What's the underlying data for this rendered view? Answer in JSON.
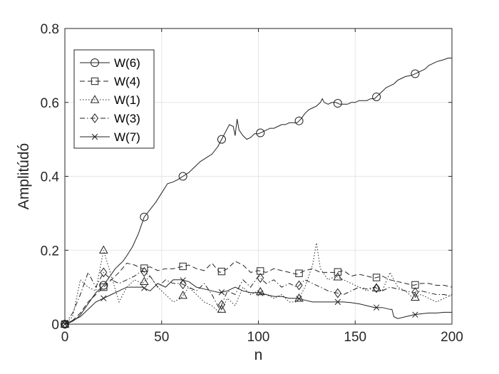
{
  "chart_data": {
    "type": "line",
    "xlabel": "n",
    "ylabel": "Amplitúdó",
    "xlim": [
      0,
      200
    ],
    "ylim": [
      0,
      0.8
    ],
    "xticks": [
      "0",
      "50",
      "100",
      "150",
      "200"
    ],
    "yticks": [
      "0",
      "0.2",
      "0.4",
      "0.6",
      "0.8"
    ],
    "grid": true,
    "legend_position": "top-left",
    "series": [
      {
        "name": "W(6)",
        "marker": "circle",
        "dash": "solid",
        "x": [
          0,
          2,
          4,
          6,
          8,
          10,
          12,
          14,
          16,
          18,
          20,
          22,
          24,
          26,
          28,
          30,
          32,
          35,
          38,
          41,
          44,
          47,
          50,
          53,
          56,
          58,
          61,
          64,
          67,
          70,
          73,
          76,
          79,
          81,
          83,
          85,
          87,
          88,
          89,
          90,
          92,
          94,
          96,
          98,
          100,
          102,
          104,
          106,
          108,
          110,
          112,
          114,
          116,
          118,
          120,
          122,
          124,
          126,
          128,
          130,
          132,
          133,
          134,
          136,
          138,
          140,
          142,
          144,
          146,
          148,
          150,
          152,
          154,
          156,
          158,
          160,
          162,
          164,
          166,
          168,
          170,
          172,
          174,
          176,
          178,
          180,
          182,
          184,
          186,
          188,
          190,
          192,
          194,
          196,
          198,
          200
        ],
        "y": [
          0,
          0.003,
          0.008,
          0.015,
          0.025,
          0.04,
          0.055,
          0.07,
          0.085,
          0.095,
          0.105,
          0.12,
          0.135,
          0.15,
          0.16,
          0.17,
          0.185,
          0.21,
          0.245,
          0.29,
          0.31,
          0.33,
          0.355,
          0.38,
          0.385,
          0.39,
          0.4,
          0.41,
          0.425,
          0.44,
          0.45,
          0.46,
          0.48,
          0.5,
          0.52,
          0.54,
          0.535,
          0.51,
          0.555,
          0.525,
          0.51,
          0.5,
          0.505,
          0.515,
          0.515,
          0.52,
          0.525,
          0.53,
          0.53,
          0.535,
          0.54,
          0.54,
          0.545,
          0.545,
          0.545,
          0.555,
          0.57,
          0.58,
          0.585,
          0.59,
          0.6,
          0.61,
          0.6,
          0.595,
          0.6,
          0.6,
          0.595,
          0.595,
          0.595,
          0.6,
          0.6,
          0.605,
          0.605,
          0.605,
          0.61,
          0.61,
          0.62,
          0.63,
          0.64,
          0.645,
          0.65,
          0.66,
          0.665,
          0.67,
          0.672,
          0.675,
          0.68,
          0.685,
          0.69,
          0.7,
          0.705,
          0.71,
          0.713,
          0.716,
          0.72,
          0.72
        ],
        "markers_at": [
          0,
          20,
          41,
          61,
          81,
          101,
          121,
          141,
          161,
          181
        ]
      },
      {
        "name": "W(4)",
        "marker": "square",
        "dash": "dashed",
        "x": [
          0,
          4,
          8,
          12,
          16,
          20,
          24,
          28,
          32,
          36,
          40,
          44,
          48,
          52,
          56,
          60,
          64,
          68,
          72,
          76,
          80,
          84,
          88,
          92,
          96,
          100,
          104,
          108,
          112,
          116,
          120,
          124,
          128,
          132,
          136,
          140,
          144,
          148,
          152,
          156,
          160,
          164,
          168,
          172,
          176,
          180,
          184,
          188,
          192,
          196,
          200
        ],
        "y": [
          0,
          0.01,
          0.03,
          0.06,
          0.08,
          0.1,
          0.12,
          0.14,
          0.165,
          0.16,
          0.15,
          0.155,
          0.145,
          0.15,
          0.15,
          0.155,
          0.16,
          0.15,
          0.145,
          0.165,
          0.14,
          0.15,
          0.17,
          0.16,
          0.14,
          0.145,
          0.14,
          0.15,
          0.145,
          0.14,
          0.135,
          0.145,
          0.15,
          0.14,
          0.14,
          0.14,
          0.145,
          0.13,
          0.135,
          0.13,
          0.125,
          0.13,
          0.12,
          0.115,
          0.11,
          0.105,
          0.11,
          0.11,
          0.105,
          0.105,
          0.1
        ],
        "markers_at": [
          0,
          20,
          41,
          61,
          81,
          101,
          121,
          141,
          161,
          181
        ]
      },
      {
        "name": "W(1)",
        "marker": "triangle",
        "dash": "dotted",
        "x": [
          0,
          4,
          8,
          12,
          16,
          20,
          24,
          28,
          32,
          36,
          40,
          44,
          48,
          52,
          56,
          60,
          64,
          68,
          72,
          76,
          80,
          84,
          88,
          92,
          96,
          100,
          104,
          108,
          112,
          116,
          120,
          124,
          128,
          130,
          132,
          136,
          140,
          144,
          148,
          152,
          156,
          160,
          164,
          168,
          172,
          176,
          180,
          184,
          188,
          192,
          196,
          200
        ],
        "y": [
          0,
          0.02,
          0.12,
          0.1,
          0.09,
          0.2,
          0.13,
          0.06,
          0.1,
          0.12,
          0.11,
          0.13,
          0.1,
          0.08,
          0.06,
          0.07,
          0.1,
          0.08,
          0.06,
          0.05,
          0.03,
          0.07,
          0.05,
          0.1,
          0.08,
          0.09,
          0.08,
          0.07,
          0.08,
          0.06,
          0.06,
          0.1,
          0.16,
          0.22,
          0.15,
          0.12,
          0.13,
          0.12,
          0.11,
          0.1,
          0.09,
          0.1,
          0.09,
          0.14,
          0.1,
          0.09,
          0.07,
          0.08,
          0.07,
          0.06,
          0.07,
          0.08
        ],
        "markers_at": [
          0,
          20,
          41,
          61,
          81,
          101,
          121,
          141,
          161,
          181
        ]
      },
      {
        "name": "W(3)",
        "marker": "diamond",
        "dash": "dashdot",
        "x": [
          0,
          4,
          8,
          12,
          16,
          20,
          24,
          28,
          32,
          36,
          40,
          44,
          48,
          52,
          56,
          60,
          64,
          68,
          72,
          76,
          80,
          84,
          88,
          92,
          96,
          100,
          104,
          108,
          112,
          116,
          120,
          124,
          128,
          132,
          136,
          140,
          144,
          148,
          152,
          156,
          160,
          164,
          168,
          172,
          176,
          180,
          184,
          188,
          192,
          196,
          200
        ],
        "y": [
          0,
          0.03,
          0.08,
          0.14,
          0.1,
          0.14,
          0.12,
          0.11,
          0.12,
          0.13,
          0.145,
          0.13,
          0.1,
          0.12,
          0.11,
          0.11,
          0.1,
          0.09,
          0.11,
          0.08,
          0.04,
          0.09,
          0.08,
          0.12,
          0.1,
          0.13,
          0.11,
          0.12,
          0.1,
          0.11,
          0.1,
          0.12,
          0.11,
          0.1,
          0.09,
          0.085,
          0.08,
          0.09,
          0.1,
          0.095,
          0.1,
          0.09,
          0.1,
          0.095,
          0.09,
          0.085,
          0.09,
          0.085,
          0.08,
          0.08,
          0.075
        ],
        "markers_at": [
          0,
          20,
          41,
          61,
          81,
          101,
          121,
          141,
          161,
          181
        ]
      },
      {
        "name": "W(7)",
        "marker": "x",
        "dash": "solid",
        "x": [
          0,
          4,
          8,
          12,
          16,
          20,
          24,
          28,
          32,
          36,
          40,
          44,
          48,
          52,
          56,
          60,
          64,
          68,
          72,
          76,
          80,
          84,
          88,
          92,
          96,
          100,
          104,
          108,
          112,
          116,
          120,
          124,
          128,
          132,
          136,
          140,
          144,
          148,
          152,
          156,
          160,
          164,
          168,
          169,
          170,
          172,
          176,
          180,
          184,
          188,
          192,
          196,
          200
        ],
        "y": [
          0,
          0.01,
          0.02,
          0.04,
          0.06,
          0.07,
          0.08,
          0.09,
          0.1,
          0.1,
          0.1,
          0.09,
          0.11,
          0.1,
          0.12,
          0.12,
          0.115,
          0.1,
          0.095,
          0.09,
          0.085,
          0.09,
          0.1,
          0.09,
          0.085,
          0.085,
          0.08,
          0.075,
          0.075,
          0.07,
          0.07,
          0.065,
          0.06,
          0.06,
          0.06,
          0.06,
          0.06,
          0.058,
          0.055,
          0.05,
          0.045,
          0.045,
          0.04,
          0.04,
          0.02,
          0.015,
          0.02,
          0.025,
          0.028,
          0.03,
          0.03,
          0.032,
          0.032
        ],
        "markers_at": [
          0,
          20,
          41,
          61,
          81,
          101,
          121,
          141,
          161,
          181
        ]
      }
    ]
  }
}
